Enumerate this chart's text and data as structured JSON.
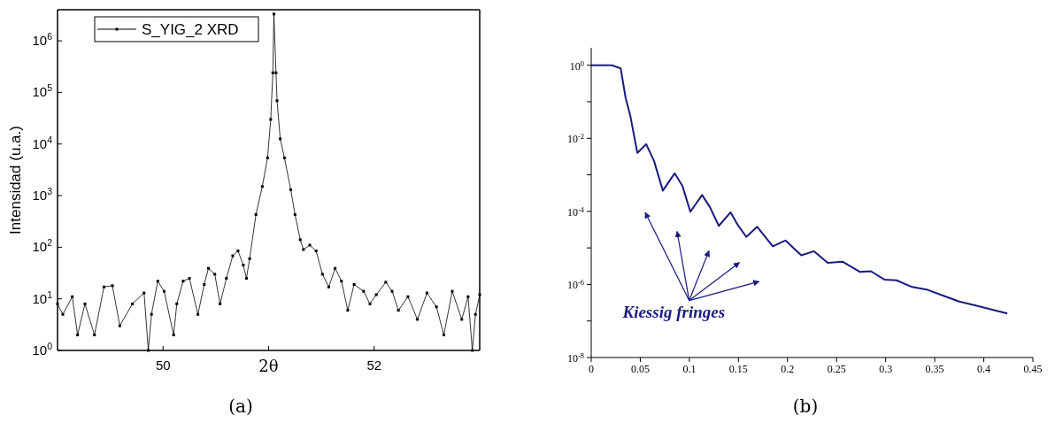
{
  "chart_data": [
    {
      "type": "line",
      "ylabel": "Intensidad (u.a.)",
      "xlabel": "2θ",
      "log": "y",
      "marker": "square",
      "legend": "top left",
      "grid": false,
      "xlim": [
        49,
        53
      ],
      "xticks": [
        50,
        {
          "value": 51,
          "label": null
        },
        52
      ],
      "ylim": [
        1,
        4000000
      ],
      "yticks": [
        {
          "value": 1,
          "label": "10$^{0}$"
        },
        {
          "value": 10,
          "label": "10$^{1}$"
        },
        {
          "value": 100,
          "label": "10$^{2}$"
        },
        {
          "value": 1000,
          "label": "10$^{3}$"
        },
        {
          "value": 10000,
          "label": "10$^{4}$"
        },
        {
          "value": 100000,
          "label": "10$^{5}$"
        },
        {
          "value": 1000000,
          "label": "10$^{6}$"
        }
      ],
      "annotations": [
        "(a)"
      ],
      "series": [
        {
          "name": "S_YIG_2 XRD",
          "color": "#000000",
          "x": [
            49.0,
            49.05,
            49.14,
            49.19,
            49.26,
            49.35,
            49.44,
            49.52,
            49.59,
            49.71,
            49.82,
            49.86,
            49.89,
            49.95,
            50.01,
            50.1,
            50.13,
            50.19,
            50.25,
            50.33,
            50.39,
            50.43,
            50.49,
            50.54,
            50.6,
            50.66,
            50.71,
            50.76,
            50.79,
            50.82,
            50.88,
            50.94,
            50.99,
            51.02,
            51.04,
            51.05,
            51.07,
            51.08,
            51.11,
            51.15,
            51.21,
            51.25,
            51.3,
            51.33,
            51.39,
            51.45,
            51.51,
            51.57,
            51.63,
            51.69,
            51.75,
            51.81,
            51.9,
            51.96,
            52.02,
            52.11,
            52.17,
            52.23,
            52.32,
            52.41,
            52.5,
            52.59,
            52.66,
            52.74,
            52.83,
            52.89,
            52.93,
            52.96,
            53.0
          ],
          "values": [
            8,
            5,
            11,
            2,
            8,
            2,
            17,
            18,
            3,
            8,
            13,
            1,
            5,
            22,
            14,
            2,
            8,
            22,
            25,
            5,
            19,
            39,
            30,
            8,
            25,
            68,
            85,
            45,
            25,
            60,
            430,
            1500,
            5400,
            30000,
            240000,
            3300000,
            240000,
            69000,
            12600,
            5400,
            1300,
            430,
            140,
            90,
            110,
            85,
            30,
            17,
            39,
            22,
            6,
            19,
            14,
            8,
            12,
            21,
            14,
            6,
            11,
            4,
            13,
            7,
            2,
            14,
            4,
            11,
            1,
            5,
            12
          ]
        }
      ]
    },
    {
      "type": "line",
      "log": "y",
      "marker": "none",
      "grid": false,
      "xlim": [
        0,
        0.45
      ],
      "xticks": [
        0,
        0.05,
        0.1,
        0.15,
        0.2,
        0.25,
        0.3,
        0.35,
        0.4,
        0.45
      ],
      "ylim": [
        1e-08,
        3
      ],
      "yticks": [
        {
          "value": 1e-08,
          "label": "10$^{-8}$"
        },
        {
          "value": 1e-07,
          "label": null
        },
        {
          "value": 1e-06,
          "label": "10$^{-6}$"
        },
        {
          "value": 1e-05,
          "label": null
        },
        {
          "value": 0.0001,
          "label": "10$^{-4}$"
        },
        {
          "value": 0.001,
          "label": null
        },
        {
          "value": 0.01,
          "label": "10$^{-2}$"
        },
        {
          "value": 0.1,
          "label": null
        },
        {
          "value": 1,
          "label": "10$^{0}$"
        }
      ],
      "annotations": [
        "Kiessig fringes",
        "(b)"
      ],
      "series": [
        {
          "color": "#1a1a80",
          "x": [
            0,
            0.021,
            0.03,
            0.035,
            0.04,
            0.047,
            0.056,
            0.064,
            0.073,
            0.085,
            0.093,
            0.101,
            0.113,
            0.121,
            0.13,
            0.142,
            0.149,
            0.158,
            0.169,
            0.185,
            0.198,
            0.214,
            0.227,
            0.241,
            0.256,
            0.274,
            0.285,
            0.299,
            0.311,
            0.327,
            0.343,
            0.359,
            0.375,
            0.391,
            0.407,
            0.424
          ],
          "values": [
            1,
            1,
            0.82,
            0.13,
            0.039,
            0.004,
            0.0069,
            0.0024,
            0.00037,
            0.0011,
            0.00049,
            9.8e-05,
            0.00028,
            0.00013,
            4e-05,
            9.4e-05,
            4.4e-05,
            2e-05,
            3.8e-05,
            1.1e-05,
            1.6e-05,
            6.3e-06,
            8.1e-06,
            3.9e-06,
            4.2e-06,
            2.2e-06,
            2.3e-06,
            1.35e-06,
            1.3e-06,
            8.5e-07,
            7.1e-07,
            4.9e-07,
            3.4e-07,
            2.7e-07,
            2.1e-07,
            1.6e-07
          ]
        }
      ]
    }
  ]
}
